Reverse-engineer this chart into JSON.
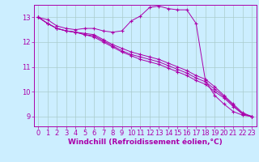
{
  "background_color": "#cceeff",
  "grid_color": "#aacccc",
  "line_color": "#aa00aa",
  "xlabel": "Windchill (Refroidissement éolien,°C)",
  "xlabel_fontsize": 6.5,
  "tick_label_fontsize": 6,
  "xlim": [
    -0.5,
    23.5
  ],
  "ylim": [
    8.6,
    13.5
  ],
  "yticks": [
    9,
    10,
    11,
    12,
    13
  ],
  "xticks": [
    0,
    1,
    2,
    3,
    4,
    5,
    6,
    7,
    8,
    9,
    10,
    11,
    12,
    13,
    14,
    15,
    16,
    17,
    18,
    19,
    20,
    21,
    22,
    23
  ],
  "series": [
    {
      "x": [
        0,
        1,
        2,
        3,
        4,
        5,
        6,
        7,
        8,
        9,
        10,
        11,
        12,
        13,
        14,
        15,
        16,
        17,
        18,
        19,
        20,
        21,
        22,
        23
      ],
      "y": [
        13.0,
        12.9,
        12.65,
        12.55,
        12.5,
        12.55,
        12.55,
        12.45,
        12.4,
        12.45,
        12.85,
        13.05,
        13.4,
        13.45,
        13.35,
        13.3,
        13.3,
        12.75,
        10.45,
        9.85,
        9.5,
        9.2,
        9.05,
        9.0
      ]
    },
    {
      "x": [
        0,
        1,
        2,
        3,
        4,
        5,
        6,
        7,
        8,
        9,
        10,
        11,
        12,
        13,
        14,
        15,
        16,
        17,
        18,
        19,
        20,
        21,
        22,
        23
      ],
      "y": [
        13.0,
        12.75,
        12.55,
        12.45,
        12.4,
        12.35,
        12.3,
        12.1,
        11.9,
        11.75,
        11.6,
        11.5,
        11.4,
        11.3,
        11.15,
        11.0,
        10.85,
        10.65,
        10.5,
        10.2,
        9.85,
        9.5,
        9.15,
        9.0
      ]
    },
    {
      "x": [
        0,
        1,
        2,
        3,
        4,
        5,
        6,
        7,
        8,
        9,
        10,
        11,
        12,
        13,
        14,
        15,
        16,
        17,
        18,
        19,
        20,
        21,
        22,
        23
      ],
      "y": [
        13.0,
        12.75,
        12.55,
        12.45,
        12.4,
        12.3,
        12.25,
        12.05,
        11.85,
        11.65,
        11.5,
        11.4,
        11.3,
        11.2,
        11.05,
        10.9,
        10.75,
        10.55,
        10.4,
        10.1,
        9.8,
        9.45,
        9.1,
        9.0
      ]
    },
    {
      "x": [
        0,
        1,
        2,
        3,
        4,
        5,
        6,
        7,
        8,
        9,
        10,
        11,
        12,
        13,
        14,
        15,
        16,
        17,
        18,
        19,
        20,
        21,
        22,
        23
      ],
      "y": [
        13.0,
        12.75,
        12.55,
        12.45,
        12.4,
        12.3,
        12.2,
        12.0,
        11.8,
        11.6,
        11.45,
        11.3,
        11.2,
        11.1,
        10.95,
        10.8,
        10.65,
        10.45,
        10.3,
        10.0,
        9.75,
        9.4,
        9.1,
        9.0
      ]
    }
  ]
}
